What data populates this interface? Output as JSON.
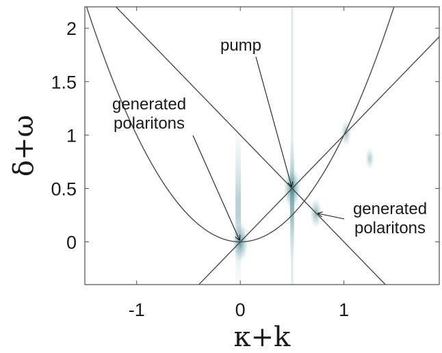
{
  "chart_data": {
    "type": "line",
    "title": "",
    "xlabel": "κ+k",
    "ylabel": "δ+ω",
    "xlim": [
      -1.5,
      1.92
    ],
    "ylim": [
      -0.4,
      2.2
    ],
    "xticks": [
      -1,
      0,
      1
    ],
    "xtick_labels": [
      "-1",
      "0",
      "1"
    ],
    "yticks": [
      0,
      0.5,
      1,
      1.5,
      2
    ],
    "ytick_labels": [
      "0",
      "0.5",
      "1",
      "1.5",
      "2"
    ],
    "grid": false,
    "curves": [
      {
        "name": "",
        "form": "y = x^2",
        "x_range": [
          -1.5,
          1.92
        ]
      },
      {
        "name": "",
        "form": "y = x",
        "x_range": [
          -0.4,
          1.92
        ]
      },
      {
        "name": "",
        "form": "y = 1 - x",
        "x_range": [
          -1.5,
          1.92
        ]
      }
    ],
    "spots": [
      {
        "x": 0.0,
        "y": 0.0,
        "intensity": 0.9
      },
      {
        "x": 0.5,
        "y": 0.5,
        "intensity": 1.0
      },
      {
        "x": 0.73,
        "y": 0.27,
        "intensity": 0.5
      },
      {
        "x": 1.02,
        "y": 1.02,
        "intensity": 0.35
      },
      {
        "x": 1.25,
        "y": 0.78,
        "intensity": 0.2
      }
    ],
    "annotations": [
      {
        "text_lines": [
          "pump"
        ],
        "points_to": [
          0.5,
          0.5
        ]
      },
      {
        "text_lines": [
          "generated",
          "polaritons"
        ],
        "points_to": [
          0.0,
          0.0
        ]
      },
      {
        "text_lines": [
          "generated",
          "polaritons"
        ],
        "points_to": [
          0.73,
          0.27
        ]
      }
    ]
  }
}
